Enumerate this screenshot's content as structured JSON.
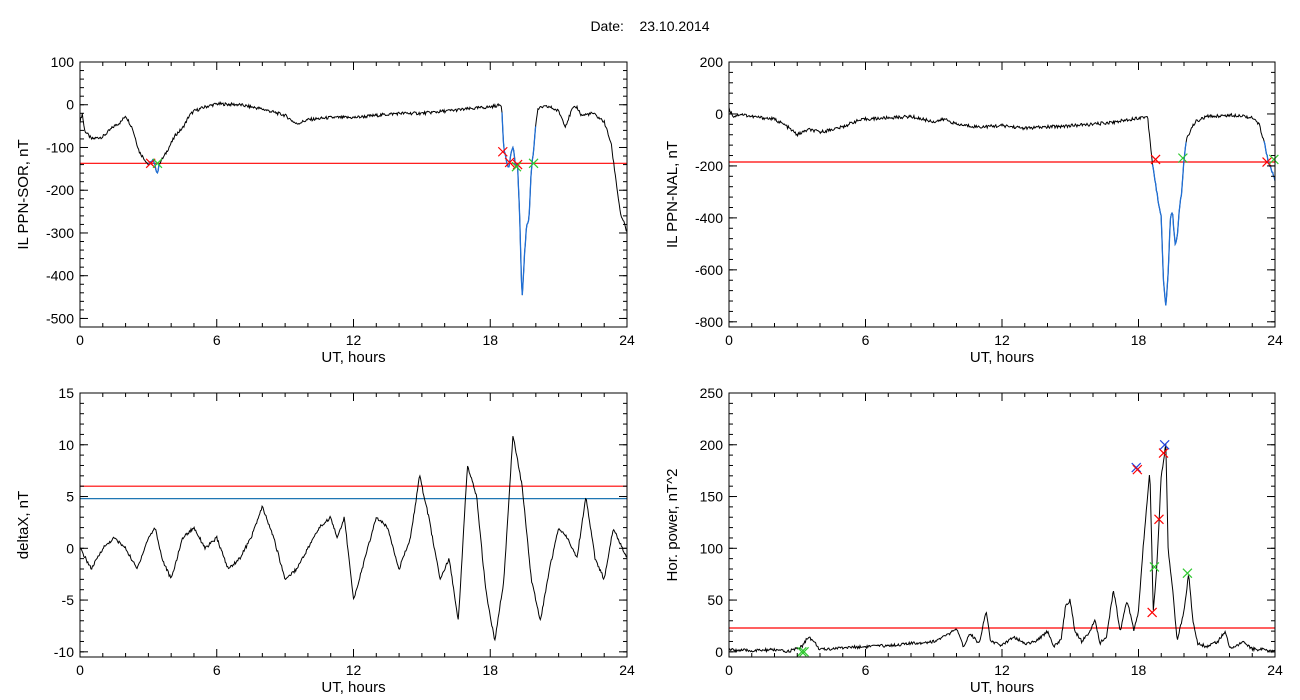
{
  "header": {
    "date_label": "Date:",
    "date_value": "23.10.2014"
  },
  "colors": {
    "trace": "#000000",
    "threshold": "#ff0000",
    "highlight": "#1f6fd6",
    "blue_line": "#1f77b4",
    "marker_red": "#ff0000",
    "marker_green": "#2ec82e",
    "marker_blue": "#2244dd"
  },
  "chart_data": [
    {
      "type": "line",
      "ylabel": "IL PPN-SOR, nT",
      "xlabel": "UT, hours",
      "xlim": [
        0,
        24
      ],
      "ylim": [
        -520,
        100
      ],
      "xticks": [
        "0",
        "6",
        "12",
        "18",
        "24"
      ],
      "yticks": [
        "100",
        "0",
        "-100",
        "-200",
        "-300",
        "-400",
        "-500"
      ],
      "ytick_values": [
        100,
        0,
        -100,
        -200,
        -300,
        -400,
        -500
      ],
      "threshold": -137,
      "series": [
        {
          "x": [
            0,
            0.1,
            0.2,
            0.5,
            1.0,
            1.5,
            1.8,
            2.0,
            2.3,
            2.6,
            2.8,
            3.0,
            3.2,
            3.4,
            3.5,
            3.7,
            4.0,
            4.2,
            4.5,
            4.8,
            5.0,
            5.5,
            6.0,
            7.0,
            8.0,
            9.0,
            9.5,
            10.0,
            11.0,
            12.0,
            13.0,
            14.0,
            15.0,
            16.0,
            17.0,
            18.0,
            18.5,
            18.55,
            18.6,
            18.7,
            18.8,
            18.9,
            19.0,
            19.1,
            19.2,
            19.3,
            19.35,
            19.4,
            19.5,
            19.6,
            19.7,
            19.8,
            19.9,
            20.0,
            20.1,
            20.3,
            20.6,
            20.8,
            21.0,
            21.3,
            21.6,
            21.8,
            22.0,
            22.5,
            23.0,
            23.3,
            23.5,
            23.7,
            23.8,
            23.9,
            24.0
          ],
          "y": [
            -40,
            -20,
            -60,
            -80,
            -75,
            -50,
            -40,
            -25,
            -55,
            -110,
            -125,
            -140,
            -130,
            -160,
            -135,
            -120,
            -90,
            -70,
            -55,
            -25,
            -15,
            -5,
            2,
            0,
            -10,
            -25,
            -45,
            -35,
            -30,
            -30,
            -25,
            -20,
            -20,
            -15,
            -10,
            -5,
            0,
            -60,
            -100,
            -130,
            -150,
            -120,
            -95,
            -140,
            -145,
            -270,
            -380,
            -455,
            -350,
            -280,
            -270,
            -150,
            -110,
            -40,
            -10,
            -5,
            -5,
            -10,
            -15,
            -50,
            -10,
            -5,
            -25,
            -20,
            -40,
            -90,
            -170,
            -250,
            -270,
            -280,
            -300
          ]
        }
      ],
      "highlight_ranges": [
        [
          3.0,
          3.5
        ],
        [
          18.5,
          20.0
        ]
      ],
      "markers": [
        {
          "x": 3.1,
          "y": -137,
          "color": "red"
        },
        {
          "x": 3.4,
          "y": -137,
          "color": "green"
        },
        {
          "x": 18.55,
          "y": -110,
          "color": "red"
        },
        {
          "x": 18.85,
          "y": -135,
          "color": "red"
        },
        {
          "x": 19.2,
          "y": -140,
          "color": "red"
        },
        {
          "x": 19.15,
          "y": -145,
          "color": "green"
        },
        {
          "x": 19.9,
          "y": -137,
          "color": "green"
        }
      ]
    },
    {
      "type": "line",
      "ylabel": "IL PPN-NAL, nT",
      "xlabel": "UT, hours",
      "xlim": [
        0,
        24
      ],
      "ylim": [
        -820,
        200
      ],
      "xticks": [
        "0",
        "6",
        "12",
        "18",
        "24"
      ],
      "yticks": [
        "200",
        "0",
        "-200",
        "-400",
        "-600",
        "-800"
      ],
      "ytick_values": [
        200,
        0,
        -200,
        -400,
        -600,
        -800
      ],
      "threshold": -185,
      "series": [
        {
          "x": [
            0,
            0.2,
            0.5,
            1.0,
            1.5,
            2.0,
            2.5,
            3.0,
            3.5,
            4.0,
            4.5,
            5.0,
            5.5,
            6.0,
            7.0,
            8.0,
            9.0,
            9.5,
            10.0,
            11.0,
            12.0,
            13.0,
            14.0,
            15.0,
            16.0,
            17.0,
            18.0,
            18.4,
            18.6,
            18.8,
            19.0,
            19.1,
            19.2,
            19.3,
            19.4,
            19.5,
            19.6,
            19.7,
            19.8,
            19.9,
            20.0,
            20.1,
            20.3,
            20.5,
            21.0,
            22.0,
            22.5,
            23.0,
            23.3,
            23.5,
            23.7,
            23.9,
            24.0
          ],
          "y": [
            20,
            -10,
            0,
            -10,
            -15,
            -20,
            -45,
            -80,
            -60,
            -70,
            -60,
            -50,
            -30,
            -20,
            -15,
            -10,
            -30,
            -20,
            -40,
            -50,
            -45,
            -55,
            -50,
            -45,
            -40,
            -30,
            -15,
            -10,
            -180,
            -300,
            -400,
            -650,
            -740,
            -620,
            -400,
            -380,
            -500,
            -480,
            -360,
            -300,
            -180,
            -100,
            -60,
            -30,
            -10,
            -5,
            -5,
            -15,
            -40,
            -100,
            -180,
            -230,
            -260
          ]
        }
      ],
      "highlight_ranges": [
        [
          18.6,
          20.1
        ],
        [
          23.5,
          24.0
        ]
      ],
      "markers": [
        {
          "x": 18.75,
          "y": -175,
          "color": "red"
        },
        {
          "x": 19.95,
          "y": -170,
          "color": "green"
        },
        {
          "x": 23.65,
          "y": -185,
          "color": "red"
        },
        {
          "x": 23.95,
          "y": -175,
          "color": "green"
        }
      ]
    },
    {
      "type": "line",
      "ylabel": "deltaX, nT",
      "xlabel": "UT, hours",
      "xlim": [
        0,
        24
      ],
      "ylim": [
        -10.5,
        15
      ],
      "xticks": [
        "0",
        "6",
        "12",
        "18",
        "24"
      ],
      "yticks": [
        "15",
        "10",
        "5",
        "0",
        "-5",
        "-10"
      ],
      "ytick_values": [
        15,
        10,
        5,
        0,
        -5,
        -10
      ],
      "threshold": 6,
      "blue_line": 4.8,
      "series": [
        {
          "x": [
            0,
            0.5,
            1.0,
            1.5,
            2.0,
            2.5,
            3.0,
            3.3,
            3.6,
            4.0,
            4.5,
            5.0,
            5.5,
            6.0,
            6.5,
            7.0,
            7.5,
            8.0,
            8.5,
            9.0,
            9.5,
            10.0,
            10.5,
            11.0,
            11.3,
            11.6,
            12.0,
            12.5,
            13.0,
            13.5,
            14.0,
            14.5,
            14.9,
            15.3,
            15.8,
            16.2,
            16.6,
            17.0,
            17.4,
            17.8,
            18.2,
            18.6,
            19.0,
            19.4,
            19.8,
            20.2,
            20.6,
            21.0,
            21.4,
            21.8,
            22.2,
            22.6,
            23.0,
            23.4,
            23.8,
            24.0
          ],
          "y": [
            0,
            -2,
            0,
            1,
            0,
            -2,
            1,
            2,
            -1,
            -3,
            1,
            2,
            0,
            1,
            -2,
            -1,
            1,
            4,
            1,
            -3,
            -2,
            0,
            2,
            3,
            1,
            3,
            -5,
            -1,
            3,
            2,
            -2,
            1,
            7,
            3,
            -3,
            -1,
            -7,
            8,
            5,
            -4,
            -9,
            -3,
            11,
            6,
            -3,
            -7,
            -2,
            2,
            1,
            -1,
            5,
            -1,
            -3,
            2,
            0,
            -1
          ]
        }
      ]
    },
    {
      "type": "line",
      "ylabel": "Hor. power, nT^2",
      "xlabel": "UT, hours",
      "xlim": [
        0,
        24
      ],
      "ylim": [
        -5,
        250
      ],
      "xticks": [
        "0",
        "6",
        "12",
        "18",
        "24"
      ],
      "yticks": [
        "250",
        "200",
        "150",
        "100",
        "50",
        "0"
      ],
      "ytick_values": [
        250,
        200,
        150,
        100,
        50,
        0
      ],
      "threshold": 23,
      "series": [
        {
          "x": [
            0,
            1.0,
            2.0,
            2.5,
            3.0,
            3.2,
            3.5,
            3.8,
            4.0,
            5.0,
            6.0,
            7.0,
            8.0,
            9.0,
            9.5,
            10.0,
            10.3,
            10.6,
            11.0,
            11.3,
            11.5,
            12.0,
            12.5,
            13.0,
            13.5,
            14.0,
            14.3,
            14.6,
            14.8,
            15.0,
            15.2,
            15.5,
            15.8,
            16.1,
            16.3,
            16.6,
            16.9,
            17.2,
            17.5,
            17.8,
            18.0,
            18.2,
            18.5,
            18.65,
            18.8,
            19.0,
            19.2,
            19.3,
            19.5,
            19.7,
            20.0,
            20.2,
            20.4,
            20.6,
            21.0,
            21.5,
            21.8,
            22.0,
            22.3,
            22.6,
            23.0,
            23.5,
            24.0
          ],
          "y": [
            2,
            1,
            2,
            0,
            3,
            5,
            15,
            8,
            2,
            4,
            5,
            6,
            8,
            10,
            15,
            22,
            5,
            18,
            8,
            40,
            10,
            6,
            15,
            8,
            10,
            20,
            5,
            12,
            45,
            50,
            20,
            10,
            18,
            30,
            8,
            15,
            60,
            20,
            50,
            20,
            40,
            100,
            175,
            40,
            80,
            170,
            200,
            100,
            60,
            10,
            40,
            75,
            30,
            8,
            5,
            10,
            20,
            5,
            5,
            10,
            3,
            2,
            0
          ]
        }
      ],
      "markers": [
        {
          "x": 3.2,
          "y": 0,
          "color": "green"
        },
        {
          "x": 3.3,
          "y": 0,
          "color": "green"
        },
        {
          "x": 17.9,
          "y": 178,
          "color": "blue"
        },
        {
          "x": 17.95,
          "y": 176,
          "color": "red"
        },
        {
          "x": 18.6,
          "y": 38,
          "color": "red"
        },
        {
          "x": 18.7,
          "y": 82,
          "color": "green"
        },
        {
          "x": 18.9,
          "y": 128,
          "color": "red"
        },
        {
          "x": 19.1,
          "y": 192,
          "color": "red"
        },
        {
          "x": 19.15,
          "y": 200,
          "color": "blue"
        },
        {
          "x": 20.15,
          "y": 76,
          "color": "green"
        }
      ]
    }
  ]
}
